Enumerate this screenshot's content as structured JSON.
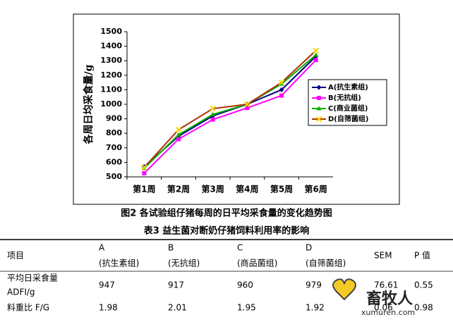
{
  "chart_data": {
    "type": "line",
    "y_label": "各周日均采食量/g",
    "categories": [
      "第1周",
      "第2周",
      "第3周",
      "第4周",
      "第5周",
      "第6周"
    ],
    "series": [
      {
        "name": "A(抗生素组)",
        "color": "#000080",
        "marker": "diamond",
        "values": [
          570,
          780,
          920,
          1000,
          1100,
          1330
        ]
      },
      {
        "name": "B(无抗组)",
        "color": "#ff00ff",
        "marker": "square",
        "values": [
          525,
          760,
          895,
          975,
          1060,
          1305
        ]
      },
      {
        "name": "C(商业菌组)",
        "color": "#00b000",
        "marker": "triangle",
        "values": [
          560,
          790,
          930,
          1000,
          1140,
          1340
        ]
      },
      {
        "name": "D(自筛菌组)",
        "color": "#b03000",
        "marker_color": "#ffd700",
        "marker": "x",
        "values": [
          565,
          825,
          970,
          1000,
          1150,
          1370
        ]
      }
    ],
    "ylim": [
      500,
      1500
    ],
    "yticks": [
      500,
      600,
      700,
      800,
      900,
      1000,
      1100,
      1200,
      1300,
      1400,
      1500
    ],
    "legend": "right"
  },
  "figure_caption": "图2  各试验组仔猪每周的日平均采食量的变化趋势图",
  "table_caption": "表3  益生菌对断奶仔猪饲料利用率的影响",
  "table": {
    "header": [
      [
        "项目"
      ],
      [
        "A",
        "(抗生素组)"
      ],
      [
        "B",
        "(无抗组)"
      ],
      [
        "C",
        "(商品菌组)"
      ],
      [
        "D",
        "(自筛菌组)"
      ],
      [
        "SEM"
      ],
      [
        "P 值"
      ]
    ],
    "rows": [
      [
        [
          "平均日采食量",
          "ADFI/g"
        ],
        "947",
        "917",
        "960",
        "979",
        "76.61",
        "0.55"
      ],
      [
        [
          "料重比 F/G"
        ],
        "1.98",
        "2.01",
        "1.95",
        "1.92",
        "0.06",
        "0.98"
      ]
    ]
  },
  "watermark": {
    "name": "畜牧人",
    "url": "xumuren.com"
  }
}
